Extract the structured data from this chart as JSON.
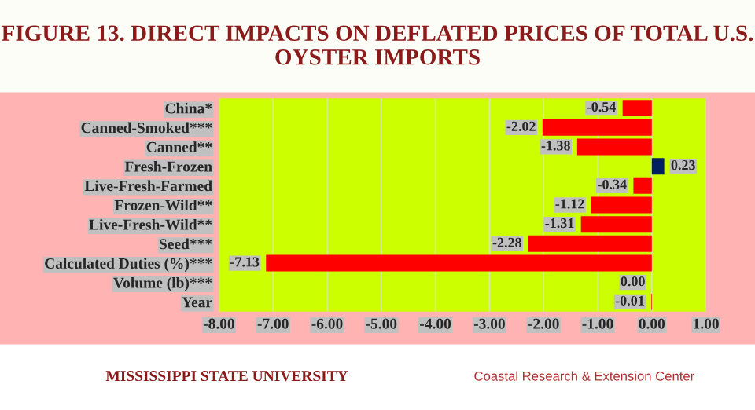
{
  "chart_data": {
    "type": "bar",
    "orientation": "horizontal",
    "title": "FIGURE 13. DIRECT IMPACTS ON DEFLATED PRICES OF TOTAL U.S. OYSTER IMPORTS",
    "categories": [
      "China*",
      "Canned-Smoked***",
      "Canned**",
      "Fresh-Frozen",
      "Live-Fresh-Farmed",
      "Frozen-Wild**",
      "Live-Fresh-Wild**",
      "Seed***",
      "Calculated Duties (%)***",
      "Volume (lb)***",
      "Year"
    ],
    "values": [
      -0.54,
      -2.02,
      -1.38,
      0.23,
      -0.34,
      -1.12,
      -1.31,
      -2.28,
      -7.13,
      0.0,
      -0.01
    ],
    "colors": [
      "#ff0000",
      "#ff0000",
      "#ff0000",
      "#002060",
      "#ff0000",
      "#ff0000",
      "#ff0000",
      "#ff0000",
      "#ff0000",
      "#ff0000",
      "#ff0000"
    ],
    "value_labels": [
      "-0.54",
      "-2.02",
      "-1.38",
      "0.23",
      "-0.34",
      "-1.12",
      "-1.31",
      "-2.28",
      "-7.13",
      "0.00",
      "-0.01"
    ],
    "xlim": [
      -8,
      1
    ],
    "xticks": [
      {
        "value": -8,
        "label": "-8.00"
      },
      {
        "value": -7,
        "label": "-7.00"
      },
      {
        "value": -6,
        "label": "-6.00"
      },
      {
        "value": -5,
        "label": "-5.00"
      },
      {
        "value": -4,
        "label": "-4.00"
      },
      {
        "value": -3,
        "label": "-3.00"
      },
      {
        "value": -2,
        "label": "-2.00"
      },
      {
        "value": -1,
        "label": "-1.00"
      },
      {
        "value": 0,
        "label": "0.00"
      },
      {
        "value": 1,
        "label": "1.00"
      }
    ],
    "grid": "x",
    "annotations": [
      "MISSISSIPPI STATE UNIVERSITY",
      "Coastal Research & Extension Center"
    ]
  }
}
